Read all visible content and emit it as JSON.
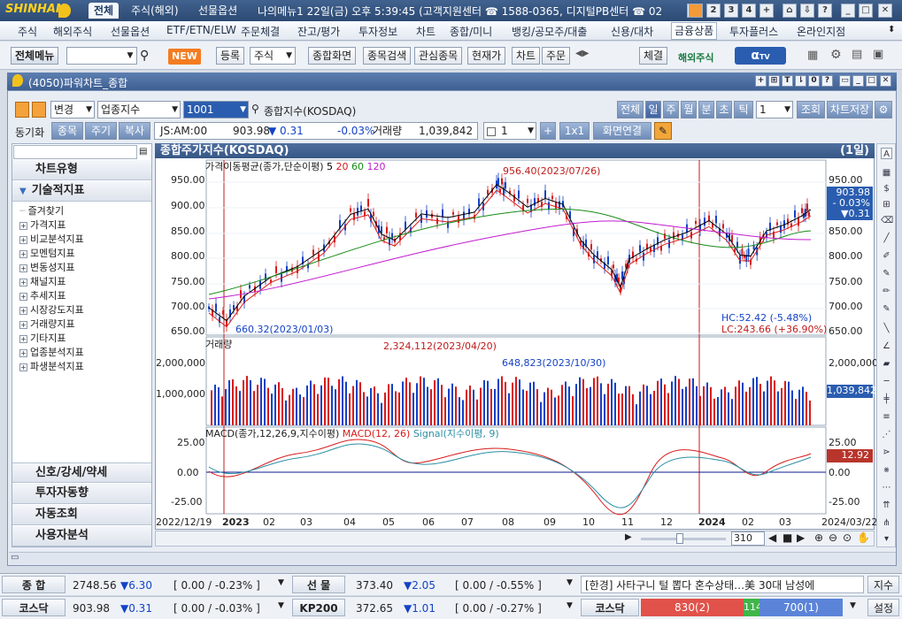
{
  "app": {
    "logo": "SHINHAN",
    "top_tabs": [
      "전체",
      "주식(해외)",
      "선물옵션",
      "나의메뉴1"
    ],
    "info_line": "22일(금) 오후 5:39:45 (고객지원센터 ☎ 1588-0365, 디지털PB센터 ☎ 02",
    "win_buttons": [
      "1",
      "2",
      "3",
      "4",
      "+",
      "⌂",
      "⇩",
      "?",
      "_",
      "□",
      "✕"
    ]
  },
  "menubar": [
    "주식",
    "해외주식",
    "선물옵션",
    "ETF/ETN/ELW",
    "주문체결",
    "잔고/평가",
    "투자정보",
    "차트",
    "종합/미니",
    "뱅킹/공모주/대출",
    "신용/대차",
    "금융상품",
    "투자플러스",
    "온라인지점"
  ],
  "menubar_selected": "금융상품",
  "toolbar": {
    "all_menu": "전체메뉴",
    "new_badge": "NEW",
    "register": "등록",
    "stock_combo": "주식",
    "buttons": [
      "종합화면",
      "종목검색",
      "관심종목",
      "현재가",
      "차트",
      "주문"
    ],
    "execution": "체결",
    "overseas": "해외주식",
    "alpha": "α",
    "alpha_sub": "TV"
  },
  "window": {
    "title": "(4050)파워차트_종합",
    "controls": [
      "+",
      "⊞",
      "T",
      "⇂",
      "0",
      "?",
      "▭",
      "_",
      "□",
      "✕"
    ]
  },
  "controls": {
    "change_label": "변경",
    "sector_combo": "업종지수",
    "code": "1001",
    "name": "종합지수(KOSDAQ)",
    "periods": [
      "전체",
      "일",
      "주",
      "월",
      "분",
      "초",
      "틱"
    ],
    "period_count": "1",
    "search": "조회",
    "save": "차트저장",
    "sync_label": "동기화",
    "sync_tabs": [
      "종목",
      "주기",
      "복사"
    ],
    "quote_name": "JS:AM:00",
    "quote_price": "903.98",
    "quote_change": "▼ 0.31",
    "quote_pct": "-0.03%",
    "volume_label": "거래량",
    "volume": "1,039,842",
    "spin_value": "1",
    "ratio": "1x1",
    "screen_link": "화면연결"
  },
  "left_panel": {
    "chart_type": "차트유형",
    "tech_indicator": "기술적지표",
    "favorites": "즐겨찾기",
    "tree": [
      "가격지표",
      "비교분석지표",
      "모멘텀지표",
      "변동성지표",
      "채널지표",
      "추세지표",
      "시장강도지표",
      "거래량지표",
      "기타지표",
      "업종분석지표",
      "파생분석지표"
    ],
    "bottom": [
      "신호/강세/약세",
      "투자자동향",
      "자동조회",
      "사용자분석"
    ]
  },
  "chart": {
    "title": "종합주가지수(KOSDAQ)",
    "period_tag": "(1일)",
    "price_panel_label": "가격이동평균(종가,단순이평)",
    "ma_periods": [
      "5",
      "20",
      "60",
      "120"
    ],
    "ma_colors": [
      "#000000",
      "#d81b1b",
      "#168a16",
      "#c21ccf"
    ],
    "high_note": "956.40(2023/07/26)",
    "low_note": "660.32(2023/01/03)",
    "hc": "HC:52.42 (-5.48%)",
    "lc": "LC:243.66 (+36.90%)",
    "price_ticks": [
      "950.00",
      "900.00",
      "850.00",
      "800.00",
      "750.00",
      "700.00",
      "650.00"
    ],
    "price_right_ticks": [
      "950.00",
      "900.00",
      "850.00",
      "800.00",
      "750.00",
      "700.00",
      "650.00"
    ],
    "last_price_box": [
      "903.98",
      "- 0.03%",
      "▼0.31"
    ],
    "volume_label": "거래량",
    "volume_high_note": "2,324,112(2023/04/20)",
    "volume_mid_note": "648,823(2023/10/30)",
    "volume_ticks": [
      "2,000,000",
      "1,000,000"
    ],
    "last_volume": "1,039,842",
    "macd_label": "MACD(종가,12,26,9,지수이평)",
    "macd_line": "MACD(12, 26)",
    "macd_signal": "Signal(지수이평, 9)",
    "macd_ticks": [
      "25.00",
      "0.00",
      "-25.00"
    ],
    "last_macd": "12.92",
    "x_labels": [
      "2022/12/19",
      "2023",
      "02",
      "03",
      "04",
      "05",
      "06",
      "07",
      "08",
      "09",
      "10",
      "11",
      "12",
      "2024",
      "02",
      "03",
      "2024/03/22"
    ],
    "zoom_value": "310"
  },
  "status": {
    "row1": {
      "lab1": "종 합",
      "v1": "2748.56",
      "c1": "▼6.30",
      "p1": "[ 0.00  / -0.23% ]",
      "lab2": "선 물",
      "v2": "373.40",
      "c2": "▼2.05",
      "p2": "[ 0.00  / -0.55% ]",
      "news": "[한경] 사타구니 털 뽑다 혼수상태…美 30대 남성에",
      "right": "지수"
    },
    "row2": {
      "lab1": "코스닥",
      "v1": "903.98",
      "c1": "▼0.31",
      "p1": "[ 0.00  / -0.03% ]",
      "lab2": "KP200",
      "v2": "372.65",
      "c2": "▼1.01",
      "p2": "[ 0.00  / -0.27% ]",
      "lab3": "코스닥",
      "b1": "830(2)",
      "b2": "114",
      "b3": "700(1)",
      "right": "설정"
    }
  }
}
